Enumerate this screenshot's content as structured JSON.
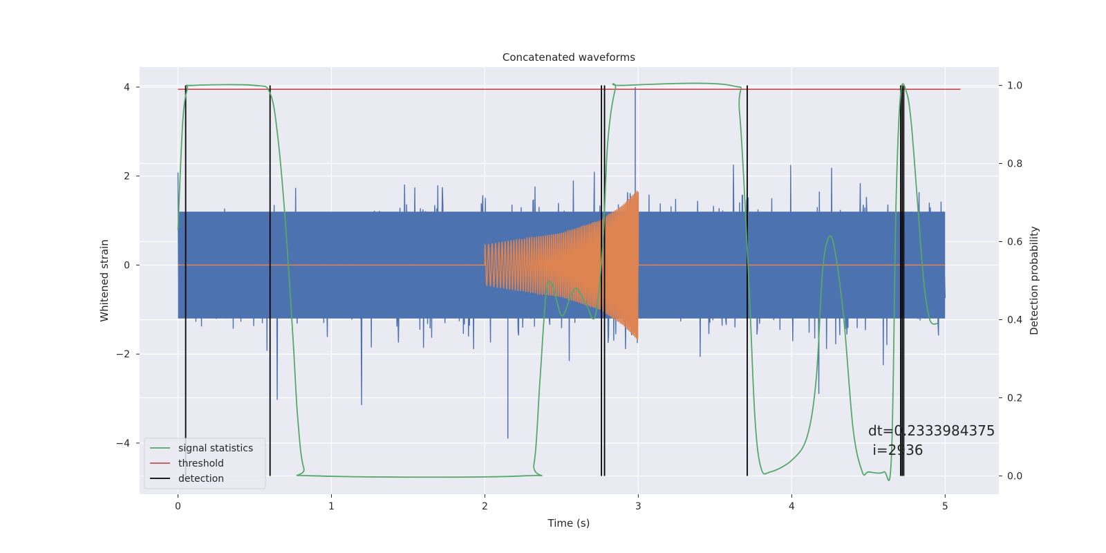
{
  "chart_data": {
    "type": "line",
    "title": "Concatenated waveforms",
    "xlabel": "Time (s)",
    "ylabel": "Whitened strain",
    "ylabel_right": "Detection probability",
    "xlim": [
      -0.25,
      5.35
    ],
    "ylim": [
      -5.15,
      4.45
    ],
    "ylim_right": [
      -0.047,
      1.047
    ],
    "xticks": [
      0,
      1,
      2,
      3,
      4,
      5
    ],
    "yticks": [
      -4,
      -2,
      0,
      2,
      4
    ],
    "yticks_right": [
      0.0,
      0.2,
      0.4,
      0.6,
      0.8,
      1.0
    ],
    "xtick_labels": [
      "0",
      "1",
      "2",
      "3",
      "4",
      "5"
    ],
    "ytick_labels": [
      "−4",
      "−2",
      "0",
      "2",
      "4"
    ],
    "ytick_right_labels": [
      "0.0",
      "0.2",
      "0.4",
      "0.6",
      "0.8",
      "1.0"
    ],
    "grid": true,
    "legend_position": "lower-left",
    "legend": [
      {
        "label": "signal statistics",
        "color": "#55a868"
      },
      {
        "label": "threshold",
        "color": "#c44e52"
      },
      {
        "label": "detection",
        "color": "#000000"
      }
    ],
    "series": [
      {
        "name": "strain",
        "axis": "left",
        "color": "#4c72b0",
        "x_range": [
          0,
          5
        ],
        "amplitude_band": [
          -1.2,
          1.2
        ],
        "approx_extremes": {
          "max": 4.0,
          "min": -3.9
        }
      },
      {
        "name": "injected waveform",
        "axis": "left",
        "color": "#dd8452",
        "x": [
          0.0,
          2.0,
          2.0,
          2.5,
          2.75,
          2.9,
          3.0,
          3.0,
          5.0
        ],
        "envelope": [
          0.0,
          0.0,
          0.45,
          0.72,
          1.0,
          1.35,
          1.7,
          0.0,
          0.0
        ],
        "chirp_frequency_hz": [
          40,
          120
        ]
      },
      {
        "name": "signal statistics",
        "axis": "right",
        "color": "#55a868",
        "x": [
          0.0,
          0.03,
          0.06,
          0.1,
          0.5,
          0.6,
          0.65,
          0.7,
          0.75,
          0.78,
          0.82,
          0.9,
          2.25,
          2.32,
          2.36,
          2.4,
          2.44,
          2.5,
          2.56,
          2.6,
          2.66,
          2.72,
          2.77,
          2.8,
          2.85,
          2.9,
          3.6,
          3.66,
          3.72,
          3.76,
          3.8,
          3.86,
          4.0,
          4.1,
          4.16,
          4.2,
          4.24,
          4.28,
          4.34,
          4.4,
          4.46,
          4.5,
          4.6,
          4.65,
          4.68,
          4.71,
          4.75,
          4.78,
          4.82,
          4.86,
          4.9,
          4.95
        ],
        "y": [
          0.63,
          0.9,
          0.99,
          1.0,
          1.0,
          0.98,
          0.87,
          0.65,
          0.35,
          0.15,
          0.02,
          0.0,
          0.0,
          0.03,
          0.25,
          0.47,
          0.49,
          0.41,
          0.46,
          0.48,
          0.44,
          0.41,
          0.6,
          0.85,
          0.99,
          1.0,
          1.0,
          0.93,
          0.5,
          0.15,
          0.02,
          0.01,
          0.04,
          0.1,
          0.25,
          0.52,
          0.61,
          0.58,
          0.4,
          0.12,
          0.01,
          0.01,
          0.01,
          0.05,
          0.7,
          0.98,
          0.98,
          0.9,
          0.7,
          0.5,
          0.4,
          0.39
        ]
      },
      {
        "name": "threshold",
        "axis": "right",
        "color": "#c44e52",
        "x": [
          0.0,
          5.1
        ],
        "y": [
          0.99,
          0.99
        ]
      }
    ],
    "detections": [
      0.05,
      0.6,
      2.76,
      2.78,
      3.71,
      4.71,
      4.72,
      4.73
    ],
    "detection_color": "#000000",
    "detection_range_right": [
      0.0,
      1.0
    ],
    "annotation": {
      "line1": "dt=0.2333984375",
      "line2": " i=2936",
      "x": 4.5,
      "y": -3.85
    }
  }
}
